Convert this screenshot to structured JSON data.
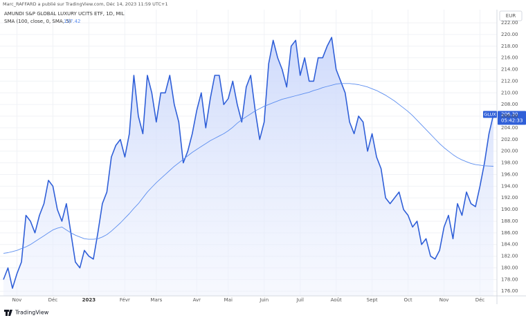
{
  "chart_data": {
    "type": "line",
    "attribution": "Marc_RAFFARD a publié sur TradingView.com, Déc 14, 2023 11:59 UTC+1",
    "title": "AMUNDI S&P GLOBAL LUXURY UCITS ETF, 1D, MIL",
    "indicator": "SMA (100, close, 0, SMA, 5)",
    "currency": "EUR",
    "ticker": "GLUX",
    "last_price": {
      "value": 206.3,
      "label": "206.30"
    },
    "countdown": "05:42:33",
    "brand": "TradingView",
    "categories": [
      null,
      null,
      null,
      "Nov",
      null,
      null,
      null,
      null,
      null,
      null,
      null,
      "Déc",
      null,
      null,
      null,
      null,
      null,
      null,
      null,
      "2023",
      null,
      null,
      null,
      null,
      null,
      null,
      null,
      "Févr",
      null,
      null,
      null,
      null,
      null,
      null,
      "Mars",
      null,
      null,
      null,
      null,
      null,
      null,
      null,
      null,
      "Avr",
      null,
      null,
      null,
      null,
      null,
      null,
      "Mai",
      null,
      null,
      null,
      null,
      null,
      null,
      null,
      "Juin",
      null,
      null,
      null,
      null,
      null,
      null,
      null,
      "Juil",
      null,
      null,
      null,
      null,
      null,
      null,
      null,
      "Août",
      null,
      null,
      null,
      null,
      null,
      null,
      null,
      "Sept",
      null,
      null,
      null,
      null,
      null,
      null,
      null,
      "Oct",
      null,
      null,
      null,
      null,
      null,
      null,
      null,
      "Nov",
      null,
      null,
      null,
      null,
      null,
      null,
      null,
      "Déc",
      null,
      null,
      null
    ],
    "series": [
      {
        "name": "GLUX",
        "color": "#2f5fd8",
        "values": [
          178,
          180,
          176.5,
          179,
          181,
          189,
          188,
          186,
          189,
          191,
          195,
          194,
          190,
          188,
          191,
          186,
          181,
          180,
          183,
          182,
          181.5,
          186,
          191,
          193,
          199,
          201,
          202,
          199,
          203,
          213,
          206,
          203,
          213,
          210,
          205,
          210,
          210,
          213,
          208,
          205,
          198,
          200,
          203,
          207,
          210,
          204,
          209,
          213,
          213,
          208,
          209,
          212,
          208,
          205,
          211,
          213,
          207,
          202,
          205,
          215,
          219,
          216,
          214,
          211,
          218,
          219,
          213,
          216,
          212,
          212,
          216,
          216,
          218,
          219.5,
          214,
          212,
          210,
          205,
          203,
          206,
          205,
          200,
          203,
          199,
          197,
          192,
          191,
          192,
          193,
          190,
          189,
          187,
          188,
          184,
          185,
          182,
          181.5,
          183,
          187,
          189,
          185,
          191,
          189,
          193,
          191,
          190.5,
          194,
          198,
          203,
          206.3
        ]
      },
      {
        "name": "SMA",
        "color": "#5b8def",
        "values": [
          182.5,
          182.6,
          182.8,
          183,
          183.3,
          183.6,
          184,
          184.5,
          185,
          185.5,
          186,
          186.5,
          186.8,
          187,
          186.5,
          186,
          185.6,
          185.3,
          185,
          184.9,
          184.9,
          185,
          185.3,
          185.7,
          186.3,
          187,
          187.7,
          188.5,
          189.3,
          190.2,
          191,
          192,
          193,
          193.8,
          194.6,
          195.3,
          196,
          196.7,
          197.4,
          198,
          198.6,
          199.2,
          199.8,
          200.3,
          200.8,
          201.3,
          201.8,
          202.2,
          202.6,
          203,
          203.5,
          204.1,
          204.8,
          205.4,
          205.9,
          206.4,
          206.9,
          207.3,
          207.7,
          208,
          208.3,
          208.6,
          208.9,
          209.1,
          209.3,
          209.5,
          209.7,
          209.9,
          210.1,
          210.4,
          210.6,
          210.9,
          211.1,
          211.3,
          211.5,
          211.6,
          211.6,
          211.6,
          211.5,
          211.4,
          211.2,
          211,
          210.7,
          210.4,
          210,
          209.6,
          209.1,
          208.6,
          208,
          207.4,
          206.8,
          206.1,
          205.3,
          204.5,
          203.7,
          202.9,
          202.1,
          201.3,
          200.6,
          200,
          199.4,
          198.9,
          198.5,
          198.2,
          197.9,
          197.7,
          197.6,
          197.5,
          197.45,
          197.42
        ]
      }
    ],
    "ylim": [
      175.2,
      224.25
    ],
    "yticks": [
      {
        "value": 176,
        "label": "176.00"
      },
      {
        "value": 178,
        "label": "178.00"
      },
      {
        "value": 180,
        "label": "180.00"
      },
      {
        "value": 182,
        "label": "182.00"
      },
      {
        "value": 184,
        "label": "184.00"
      },
      {
        "value": 186,
        "label": "186.00"
      },
      {
        "value": 188,
        "label": "188.00"
      },
      {
        "value": 190,
        "label": "190.00"
      },
      {
        "value": 192,
        "label": "192.00"
      },
      {
        "value": 194,
        "label": "194.00"
      },
      {
        "value": 196,
        "label": "196.00"
      },
      {
        "value": 198,
        "label": "198.00"
      },
      {
        "value": 200,
        "label": "200.00"
      },
      {
        "value": 202,
        "label": "202.00"
      },
      {
        "value": 204,
        "label": "204.00"
      },
      {
        "value": 206,
        "label": "206.00"
      },
      {
        "value": 208,
        "label": "208.00"
      },
      {
        "value": 210,
        "label": "210.00"
      },
      {
        "value": 212,
        "label": "212.00"
      },
      {
        "value": 214,
        "label": "214.00"
      },
      {
        "value": 216,
        "label": "216.00"
      },
      {
        "value": 218,
        "label": "218.00"
      },
      {
        "value": 220,
        "label": "220.00"
      },
      {
        "value": 222,
        "label": "222.00"
      }
    ],
    "grid": true
  }
}
